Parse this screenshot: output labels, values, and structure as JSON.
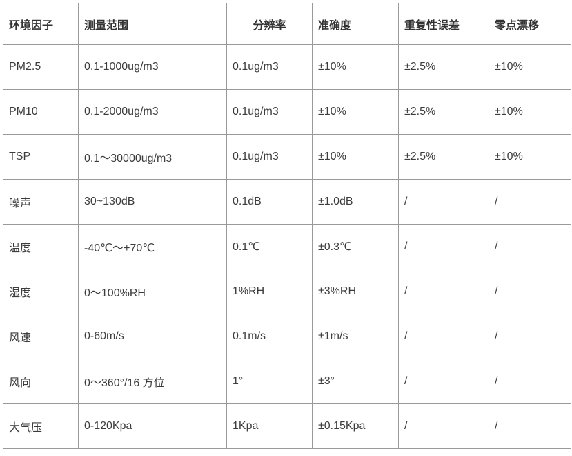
{
  "table": {
    "columns": [
      {
        "label": "环境因子"
      },
      {
        "label": "测量范围"
      },
      {
        "label": "分辨率"
      },
      {
        "label": "准确度"
      },
      {
        "label": "重复性误差"
      },
      {
        "label": "零点漂移"
      }
    ],
    "rows": [
      [
        "PM2.5",
        "0.1-1000ug/m3",
        "0.1ug/m3",
        "±10%",
        "±2.5%",
        "±10%"
      ],
      [
        "PM10",
        "0.1-2000ug/m3",
        "0.1ug/m3",
        "±10%",
        "±2.5%",
        "±10%"
      ],
      [
        "TSP",
        "0.1～30000ug/m3",
        "0.1ug/m3",
        "±10%",
        "±2.5%",
        "±10%"
      ],
      [
        "噪声",
        "30~130dB",
        "0.1dB",
        "±1.0dB",
        "/",
        "/"
      ],
      [
        "温度",
        "-40℃～+70℃",
        "0.1℃",
        "±0.3℃",
        "/",
        "/"
      ],
      [
        "湿度",
        "0～100%RH",
        "1%RH",
        "±3%RH",
        "/",
        "/"
      ],
      [
        "风速",
        "0-60m/s",
        "0.1m/s",
        "±1m/s",
        "/",
        "/"
      ],
      [
        "风向",
        "0～360°/16 方位",
        "1°",
        "±3°",
        "/",
        "/"
      ],
      [
        "大气压",
        "0-120Kpa",
        "1Kpa",
        "±0.15Kpa",
        "/",
        "/"
      ]
    ]
  },
  "colors": {
    "border": "#9a9a9a",
    "header_text": "#333333",
    "body_text": "#3c3c3c",
    "background": "#ffffff"
  }
}
